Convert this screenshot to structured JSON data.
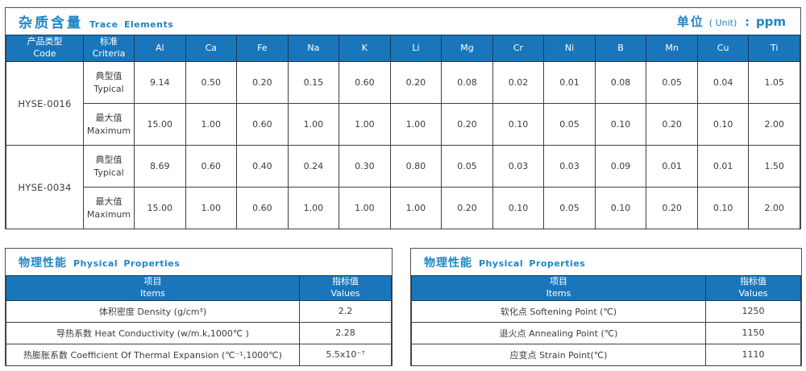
{
  "colors": {
    "header_blue": "#1a76bb",
    "title_blue": "#1e86c5",
    "border_dark": "#3f3f3f",
    "text_dark": "#3c3c3c"
  },
  "trace": {
    "title_zh": "杂质含量",
    "title_en": "Trace Elements",
    "unit_zh": "单位",
    "unit_paren": "( Unit)",
    "unit_colon": ":",
    "unit_value": "ppm",
    "header": {
      "code_zh": "产品类型",
      "code_en": "Code",
      "criteria_zh": "标准",
      "criteria_en": "Criteria",
      "elements": [
        "Al",
        "Ca",
        "Fe",
        "Na",
        "K",
        "Li",
        "Mg",
        "Cr",
        "Ni",
        "B",
        "Mn",
        "Cu",
        "Ti"
      ]
    },
    "products": [
      {
        "code": "HYSE-0016",
        "rows": [
          {
            "label_zh": "典型值",
            "label_en": "Typical",
            "values": [
              "9.14",
              "0.50",
              "0.20",
              "0.15",
              "0.60",
              "0.20",
              "0.08",
              "0.02",
              "0.01",
              "0.08",
              "0.05",
              "0.04",
              "1.05"
            ]
          },
          {
            "label_zh": "最大值",
            "label_en": "Maximum",
            "values": [
              "15.00",
              "1.00",
              "0.60",
              "1.00",
              "1.00",
              "1.00",
              "0.20",
              "0.10",
              "0.05",
              "0.10",
              "0.20",
              "0.10",
              "2.00"
            ]
          }
        ]
      },
      {
        "code": "HYSE-0034",
        "rows": [
          {
            "label_zh": "典型值",
            "label_en": "Typical",
            "values": [
              "8.69",
              "0.60",
              "0.40",
              "0.24",
              "0.30",
              "0.80",
              "0.05",
              "0.03",
              "0.03",
              "0.09",
              "0.01",
              "0.01",
              "1.50"
            ]
          },
          {
            "label_zh": "最大值",
            "label_en": "Maximum",
            "values": [
              "15.00",
              "1.00",
              "0.60",
              "1.00",
              "1.00",
              "1.00",
              "0.20",
              "0.10",
              "0.05",
              "0.10",
              "0.20",
              "0.10",
              "2.00"
            ]
          }
        ]
      }
    ]
  },
  "physical_left": {
    "title_zh": "物理性能",
    "title_en": "Physical Properties",
    "col_items_zh": "项目",
    "col_items_en": "Items",
    "col_values_zh": "指标值",
    "col_values_en": "Values",
    "rows": [
      {
        "item": "体积密度 Density (g/cm³)",
        "value": "2.2"
      },
      {
        "item": "导热系数 Heat Conductivity (w/m.k,1000℃ )",
        "value": "2.28"
      },
      {
        "item": "热膨胀系数 Coefficient Of Thermal Expansion (℃⁻¹,1000℃)",
        "value": "5.5x10⁻⁷"
      }
    ]
  },
  "physical_right": {
    "title_zh": "物理性能",
    "title_en": "Physical Properties",
    "col_items_zh": "项目",
    "col_items_en": "Items",
    "col_values_zh": "指标值",
    "col_values_en": "Values",
    "rows": [
      {
        "item": "软化点 Softening Point (℃)",
        "value": "1250"
      },
      {
        "item": "退火点 Annealing Point (℃)",
        "value": "1150"
      },
      {
        "item": "应变点 Strain Point(℃)",
        "value": "1110"
      }
    ]
  }
}
